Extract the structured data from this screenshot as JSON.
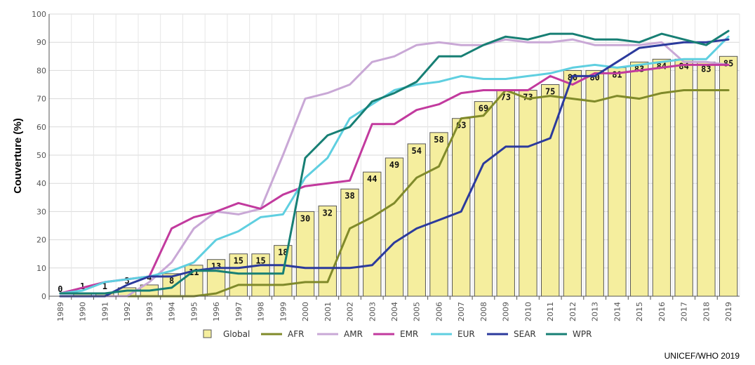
{
  "chart_data": {
    "type": "bar",
    "ylabel": "Couverture (%)",
    "ylim": [
      0,
      100
    ],
    "yticks": [
      0,
      10,
      20,
      30,
      40,
      50,
      60,
      70,
      80,
      90,
      100
    ],
    "grid": true,
    "legend_position": "bottom",
    "categories": [
      "1989",
      "1990",
      "1991",
      "1992",
      "1993",
      "1994",
      "1995",
      "1996",
      "1997",
      "1998",
      "1999",
      "2000",
      "2001",
      "2002",
      "2003",
      "2004",
      "2005",
      "2006",
      "2007",
      "2008",
      "2009",
      "2010",
      "2011",
      "2012",
      "2013",
      "2014",
      "2015",
      "2016",
      "2017",
      "2018",
      "2019"
    ],
    "bars": {
      "name": "Global",
      "color": "#f5ee9e",
      "values": [
        0,
        1,
        1,
        3,
        4,
        8,
        11,
        13,
        15,
        15,
        18,
        30,
        32,
        38,
        44,
        49,
        54,
        58,
        63,
        69,
        73,
        73,
        75,
        80,
        80,
        81,
        83,
        84,
        84,
        83,
        85
      ]
    },
    "series": [
      {
        "name": "AFR",
        "color": "#808a2a",
        "values": [
          0,
          0,
          0,
          0,
          0,
          0,
          0,
          1,
          4,
          4,
          4,
          5,
          5,
          24,
          28,
          33,
          42,
          46,
          63,
          64,
          73,
          70,
          71,
          70,
          69,
          71,
          70,
          72,
          73,
          73,
          73
        ]
      },
      {
        "name": "AMR",
        "color": "#c9a8d6",
        "values": [
          0,
          0,
          0,
          0,
          5,
          12,
          24,
          30,
          29,
          31,
          50,
          70,
          72,
          75,
          83,
          85,
          89,
          90,
          89,
          89,
          91,
          90,
          90,
          91,
          89,
          89,
          89,
          90,
          83,
          83,
          82
        ]
      },
      {
        "name": "EMR",
        "color": "#c23a9e",
        "values": [
          1,
          3,
          5,
          6,
          7,
          24,
          28,
          30,
          33,
          31,
          36,
          39,
          40,
          41,
          61,
          61,
          66,
          68,
          72,
          73,
          73,
          73,
          78,
          75,
          79,
          79,
          80,
          81,
          82,
          82,
          82
        ]
      },
      {
        "name": "EUR",
        "color": "#5fcfe0",
        "values": [
          1,
          2,
          5,
          6,
          7,
          9,
          12,
          20,
          23,
          28,
          29,
          42,
          49,
          63,
          68,
          73,
          75,
          76,
          78,
          77,
          77,
          78,
          79,
          81,
          82,
          81,
          82,
          83,
          84,
          84,
          92
        ]
      },
      {
        "name": "SEAR",
        "color": "#2b3a9c",
        "values": [
          0,
          0,
          0,
          4,
          7,
          7,
          9,
          10,
          10,
          11,
          11,
          10,
          10,
          10,
          11,
          19,
          24,
          27,
          30,
          47,
          53,
          53,
          56,
          78,
          78,
          83,
          88,
          89,
          90,
          90,
          91
        ]
      },
      {
        "name": "WPR",
        "color": "#177f74",
        "values": [
          1,
          1,
          1,
          2,
          2,
          3,
          9,
          9,
          8,
          8,
          8,
          49,
          57,
          60,
          69,
          72,
          76,
          85,
          85,
          89,
          92,
          91,
          93,
          93,
          91,
          91,
          90,
          93,
          91,
          89,
          94
        ]
      }
    ]
  },
  "footer": {
    "source": "UNICEF/WHO 2019"
  }
}
